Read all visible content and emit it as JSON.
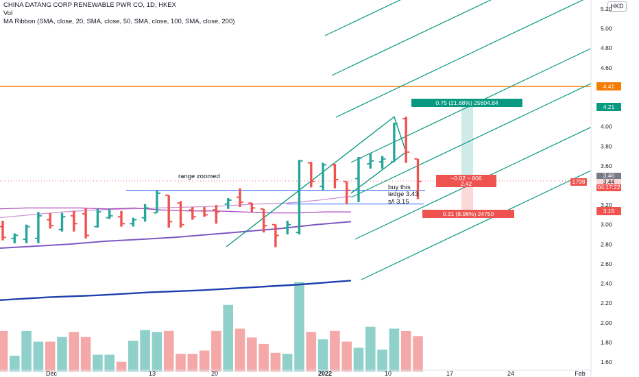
{
  "legend": {
    "title": "CHINA DATANG CORP RENEWABLE PWR CO, 1D, HKEX",
    "vol": "Vol",
    "ribbon": "MA Ribbon (SMA, close, 20, SMA, close, 50, SMA, close, 100, SMA, close, 200)"
  },
  "currency": "HKD",
  "colors": {
    "up": "#26a69a",
    "down": "#ef5350",
    "vol_up": "#8fd1ca",
    "vol_down": "#f4a9a8",
    "pitchfork": "#089981",
    "level_line": "#f57c00",
    "box_line": "#2962ff",
    "ma20": "#ce93d8",
    "ma50": "#ab47bc",
    "ma100": "#7e57c2",
    "ma200": "#1e40af"
  },
  "annotations": {
    "range_zoomed": "range zoomed",
    "buy_line1": "buy this",
    "buy_line2": "ledge 3.43",
    "buy_line3": "s/l 3.15",
    "target_label": "0.75 (21.68%) 25604.84",
    "mid_label_1": "−0.02 ~ 806",
    "mid_label_2": "2.42",
    "stop_label": "0.31 (8.96%) 24750"
  },
  "price_badges": {
    "level": "4.41",
    "fork_top": "4.21",
    "last_a": "3.46",
    "last_b": "3.44",
    "countdown": "04:17:22",
    "volume": "1798",
    "stop": "3.15"
  },
  "chart_data": {
    "type": "ohlc",
    "y_ticks": [
      "5.20",
      "5.00",
      "4.80",
      "4.60",
      "4.40",
      "4.20",
      "4.00",
      "3.80",
      "3.60",
      "3.40",
      "3.20",
      "3.00",
      "2.80",
      "2.60",
      "2.40",
      "2.20",
      "2.00",
      "1.80",
      "1.60"
    ],
    "x_ticks": [
      "Dec",
      "13",
      "20",
      "2022",
      "10",
      "17",
      "24",
      "Feb"
    ],
    "ylim": [
      1.55,
      5.25
    ],
    "bars": [
      {
        "o": 2.98,
        "h": 3.04,
        "l": 2.84,
        "c": 2.87
      },
      {
        "o": 2.86,
        "h": 2.91,
        "l": 2.81,
        "c": 2.89
      },
      {
        "o": 2.85,
        "h": 3.0,
        "l": 2.81,
        "c": 2.98
      },
      {
        "o": 2.86,
        "h": 3.13,
        "l": 2.81,
        "c": 3.09
      },
      {
        "o": 3.05,
        "h": 3.12,
        "l": 2.96,
        "c": 2.99
      },
      {
        "o": 2.95,
        "h": 3.12,
        "l": 2.93,
        "c": 3.08
      },
      {
        "o": 3.09,
        "h": 3.14,
        "l": 2.93,
        "c": 3.01
      },
      {
        "o": 3.11,
        "h": 3.17,
        "l": 2.86,
        "c": 2.89
      },
      {
        "o": 2.98,
        "h": 3.16,
        "l": 2.97,
        "c": 3.13
      },
      {
        "o": 3.07,
        "h": 3.16,
        "l": 3.06,
        "c": 3.09
      },
      {
        "o": 3.08,
        "h": 3.14,
        "l": 2.98,
        "c": 3.01
      },
      {
        "o": 3.01,
        "h": 3.07,
        "l": 2.98,
        "c": 3.05
      },
      {
        "o": 3.07,
        "h": 3.21,
        "l": 3.03,
        "c": 3.17
      },
      {
        "o": 3.12,
        "h": 3.35,
        "l": 3.12,
        "c": 3.32
      },
      {
        "o": 3.3,
        "h": 3.3,
        "l": 2.97,
        "c": 3.03
      },
      {
        "o": 3.22,
        "h": 3.24,
        "l": 2.97,
        "c": 3.0
      },
      {
        "o": 3.15,
        "h": 3.18,
        "l": 3.05,
        "c": 3.08
      },
      {
        "o": 3.14,
        "h": 3.18,
        "l": 3.08,
        "c": 3.1
      },
      {
        "o": 3.15,
        "h": 3.2,
        "l": 3.01,
        "c": 3.13
      },
      {
        "o": 3.21,
        "h": 3.27,
        "l": 3.16,
        "c": 3.25
      },
      {
        "o": 3.28,
        "h": 3.37,
        "l": 3.18,
        "c": 3.23
      },
      {
        "o": 3.22,
        "h": 3.22,
        "l": 3.13,
        "c": 3.17
      },
      {
        "o": 3.16,
        "h": 3.16,
        "l": 2.92,
        "c": 2.99
      },
      {
        "o": 3.0,
        "h": 3.0,
        "l": 2.77,
        "c": 2.89
      },
      {
        "o": 2.97,
        "h": 3.04,
        "l": 2.9,
        "c": 3.0
      },
      {
        "o": 2.92,
        "h": 3.66,
        "l": 2.9,
        "c": 3.65
      },
      {
        "o": 3.63,
        "h": 3.64,
        "l": 3.38,
        "c": 3.44
      },
      {
        "o": 3.39,
        "h": 3.63,
        "l": 3.35,
        "c": 3.61
      },
      {
        "o": 3.61,
        "h": 3.62,
        "l": 3.37,
        "c": 3.46
      },
      {
        "o": 3.44,
        "h": 3.44,
        "l": 3.21,
        "c": 3.35
      },
      {
        "o": 3.47,
        "h": 3.69,
        "l": 3.23,
        "c": 3.68
      },
      {
        "o": 3.62,
        "h": 3.73,
        "l": 3.57,
        "c": 3.65
      },
      {
        "o": 3.64,
        "h": 3.7,
        "l": 3.57,
        "c": 3.67
      },
      {
        "o": 3.64,
        "h": 4.04,
        "l": 3.64,
        "c": 4.03
      },
      {
        "o": 4.08,
        "h": 4.1,
        "l": 3.63,
        "c": 3.74
      },
      {
        "o": 3.67,
        "h": 3.67,
        "l": 3.26,
        "c": 3.44
      }
    ],
    "volume": [
      0.87,
      0.34,
      0.87,
      0.64,
      0.64,
      0.74,
      0.85,
      0.74,
      0.36,
      0.36,
      0.21,
      0.66,
      0.89,
      0.85,
      0.87,
      0.38,
      0.38,
      0.45,
      0.87,
      1.43,
      0.92,
      0.73,
      0.59,
      0.4,
      0.38,
      1.92,
      0.85,
      0.69,
      0.87,
      0.64,
      0.51,
      0.96,
      0.47,
      0.92,
      0.87,
      0.76
    ],
    "ma": [
      {
        "name": "SMA 20",
        "values": [
          3.07,
          3.1,
          3.13,
          3.15,
          3.16,
          3.17,
          3.18,
          3.19,
          3.21,
          3.22,
          3.25,
          3.29
        ]
      },
      {
        "name": "SMA 50",
        "values": [
          3.16,
          3.17,
          3.17,
          3.17,
          3.16,
          3.17,
          3.15,
          3.14,
          3.14,
          3.13,
          3.12,
          3.12,
          3.13,
          3.13
        ]
      },
      {
        "name": "SMA 100",
        "values": [
          2.76,
          2.78,
          2.8,
          2.83,
          2.85,
          2.87,
          2.9,
          2.93,
          2.96,
          3.0,
          3.03
        ]
      },
      {
        "name": "SMA 200",
        "values": [
          2.23,
          2.26,
          2.28,
          2.31,
          2.33,
          2.36,
          2.39,
          2.43
        ]
      }
    ],
    "levels": {
      "resistance": 4.41,
      "box_top": 3.35,
      "box_bottom": 3.21,
      "buy": 3.43,
      "stop": 3.15,
      "target": 4.21
    }
  }
}
